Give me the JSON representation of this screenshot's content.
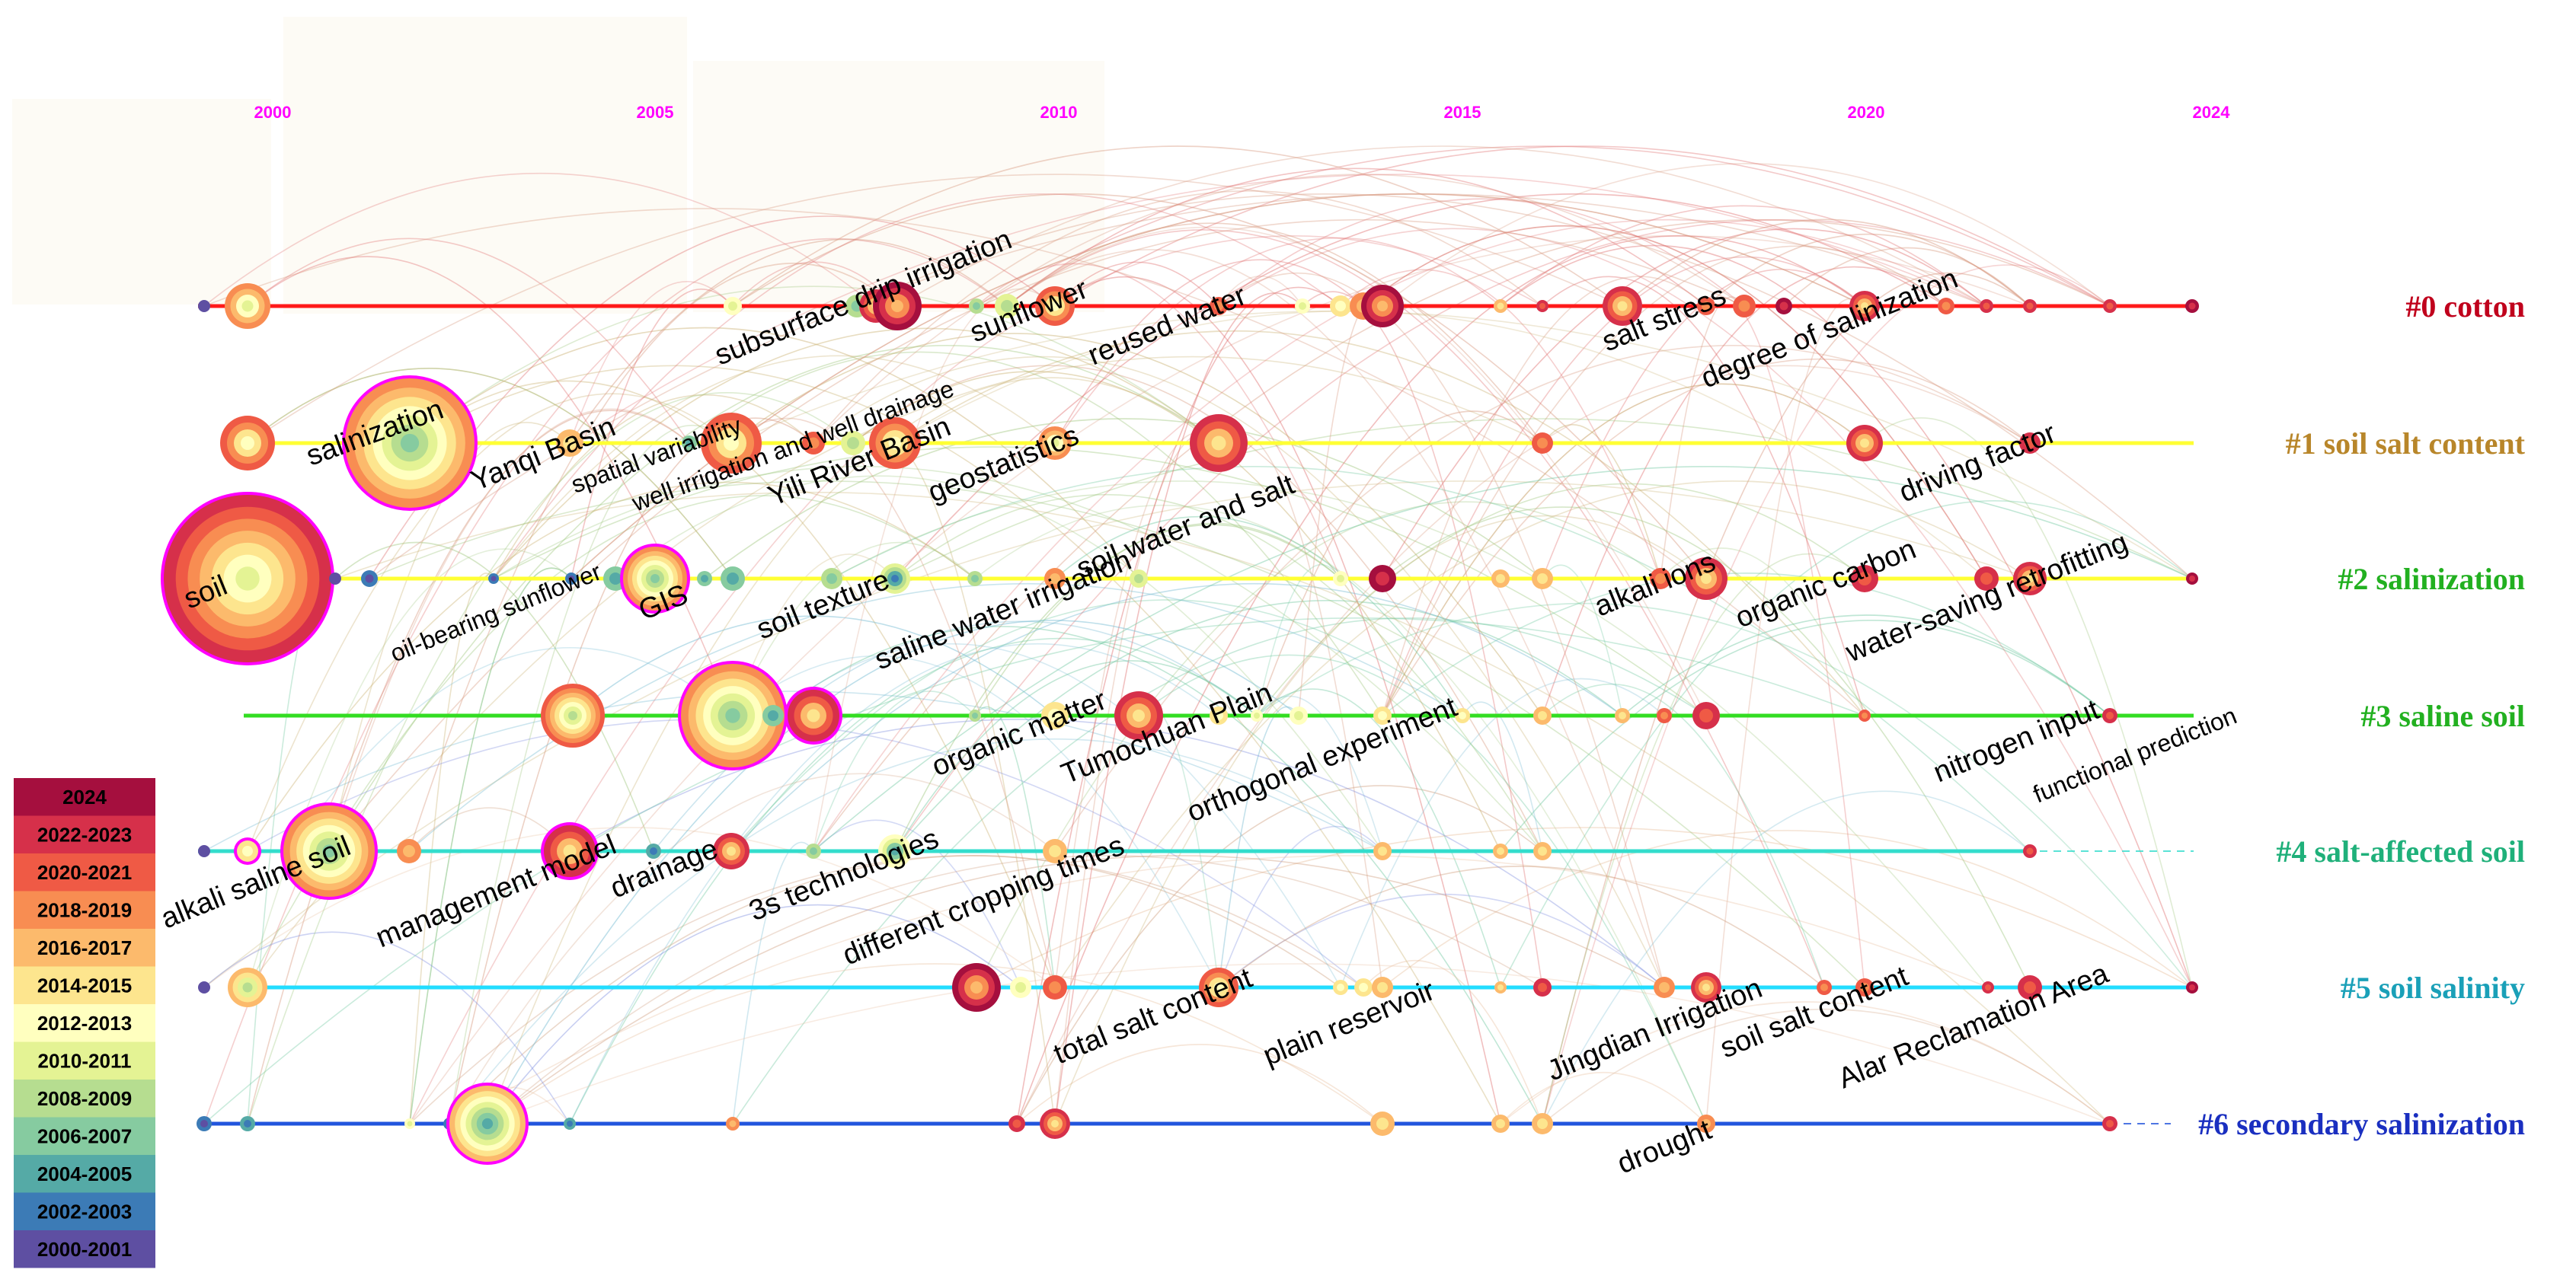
{
  "palette": {
    "year_label": "#ff00ff",
    "halo": "#ff00ff",
    "legend": [
      {
        "label": "2024",
        "color": "#a50f3e"
      },
      {
        "label": "2022-2023",
        "color": "#d6304a"
      },
      {
        "label": "2020-2021",
        "color": "#ef5a45"
      },
      {
        "label": "2018-2019",
        "color": "#f88d52"
      },
      {
        "label": "2016-2017",
        "color": "#fcba6c"
      },
      {
        "label": "2014-2015",
        "color": "#fde58e"
      },
      {
        "label": "2012-2013",
        "color": "#ffffbf"
      },
      {
        "label": "2010-2011",
        "color": "#e4f394"
      },
      {
        "label": "2008-2009",
        "color": "#b6dd90"
      },
      {
        "label": "2006-2007",
        "color": "#86cba0"
      },
      {
        "label": "2004-2005",
        "color": "#55aaa6"
      },
      {
        "label": "2002-2003",
        "color": "#3c7bb6"
      },
      {
        "label": "2000-2001",
        "color": "#5e4fa2"
      }
    ]
  },
  "years": [
    "2000",
    "2005",
    "2010",
    "2015",
    "2020",
    "2024"
  ],
  "clusters": [
    {
      "label": "#0 cotton",
      "color": "#c0001c",
      "line": "#ff1a1a"
    },
    {
      "label": "#1 soil salt content",
      "color": "#b8862a",
      "line": "#ffff33"
    },
    {
      "label": "#2 salinization",
      "color": "#22b020",
      "line": "#ffff33"
    },
    {
      "label": "#3 saline soil",
      "color": "#22b020",
      "line": "#33dd22"
    },
    {
      "label": "#4 salt-affected soil",
      "color": "#1fb07a",
      "line": "#33ddcc"
    },
    {
      "label": "#5 soil salinity",
      "color": "#1aa0b8",
      "line": "#22ddff"
    },
    {
      "label": "#6 secondary salinization",
      "color": "#1a2fc0",
      "line": "#2255dd"
    }
  ],
  "keywords": [
    "soil",
    "salinization",
    "Yanqi Basin",
    "spatial variability",
    "well irrigation and well drainage",
    "Yili River Basin",
    "geostatistics",
    "subsurface drip irrigation",
    "sunflower",
    "reused water",
    "salt stress",
    "degree of salinization",
    "soil water and salt",
    "driving factor",
    "oil-bearing sunflower",
    "GIS",
    "soil texture",
    "saline water irrigation",
    "alkali ions",
    "organic carbon",
    "water-saving retrofitting",
    "organic matter",
    "Tumochuan Plain",
    "orthogonal experiment",
    "nitrogen input",
    "functional prediction",
    "alkali saline soil",
    "management model",
    "drainage",
    "3s technologies",
    "different cropping times",
    "total salt content",
    "plain reservoir",
    "Jingdian Irrigation",
    "soil salt content",
    "Alar Reclamation Area",
    "drought"
  ]
}
